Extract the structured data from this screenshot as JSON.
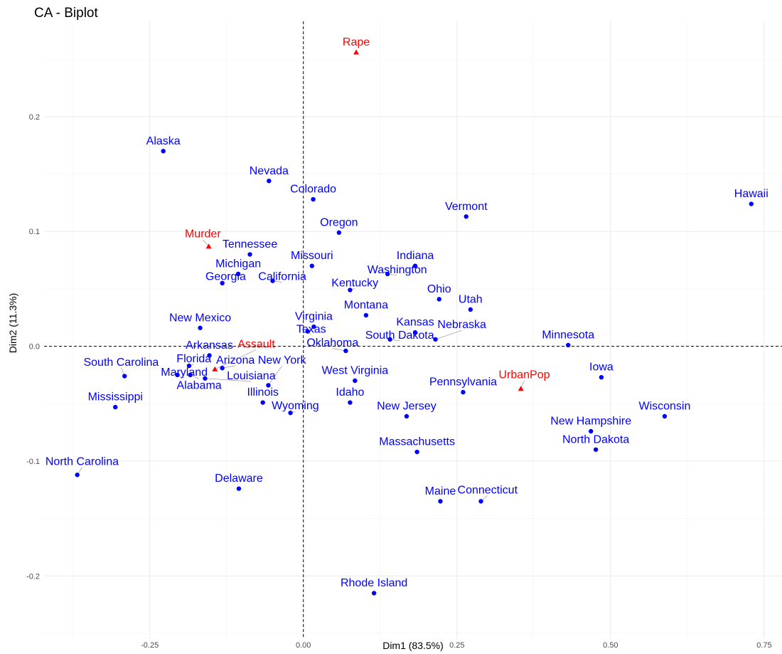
{
  "chart_data": {
    "type": "scatter",
    "title": "CA - Biplot",
    "xlabel": "Dim1 (83.5%)",
    "ylabel": "Dim2 (11.3%)",
    "xlim": [
      -0.422,
      0.779
    ],
    "ylim": [
      -0.255,
      0.283
    ],
    "xticks": [
      -0.25,
      0.0,
      0.25,
      0.5,
      0.75
    ],
    "xtick_labels": [
      "-0.25",
      "0.00",
      "0.25",
      "0.50",
      "0.75"
    ],
    "yticks": [
      -0.2,
      -0.1,
      0.0,
      0.1,
      0.2
    ],
    "ytick_labels": [
      "-0.2",
      "-0.1",
      "0.0",
      "0.1",
      "0.2"
    ],
    "grid": true,
    "colors": {
      "rows": "#0000FF",
      "cols": "#FF0000"
    },
    "series": [
      {
        "name": "rows",
        "marker": "circle",
        "points": [
          {
            "label": "Alaska",
            "x": -0.228,
            "y": 0.17
          },
          {
            "label": "Nevada",
            "x": -0.056,
            "y": 0.144
          },
          {
            "label": "Colorado",
            "x": 0.016,
            "y": 0.128
          },
          {
            "label": "Hawaii",
            "x": 0.729,
            "y": 0.124
          },
          {
            "label": "Vermont",
            "x": 0.265,
            "y": 0.113
          },
          {
            "label": "Oregon",
            "x": 0.058,
            "y": 0.099
          },
          {
            "label": "Tennessee",
            "x": -0.087,
            "y": 0.08
          },
          {
            "label": "Missouri",
            "x": 0.014,
            "y": 0.07
          },
          {
            "label": "Indiana",
            "x": 0.182,
            "y": 0.07
          },
          {
            "label": "Michigan",
            "x": -0.106,
            "y": 0.063
          },
          {
            "label": "Washington",
            "x": 0.137,
            "y": 0.063
          },
          {
            "label": "California",
            "x": -0.05,
            "y": 0.057
          },
          {
            "label": "Georgia",
            "x": -0.132,
            "y": 0.055
          },
          {
            "label": "Kentucky",
            "x": 0.076,
            "y": 0.049
          },
          {
            "label": "Ohio",
            "x": 0.221,
            "y": 0.041
          },
          {
            "label": "Utah",
            "x": 0.272,
            "y": 0.032
          },
          {
            "label": "Montana",
            "x": 0.102,
            "y": 0.027
          },
          {
            "label": "Virginia",
            "x": 0.017,
            "y": 0.017
          },
          {
            "label": "Texas",
            "x": 0.007,
            "y": 0.013
          },
          {
            "label": "New Mexico",
            "x": -0.168,
            "y": 0.016
          },
          {
            "label": "Kansas",
            "x": 0.182,
            "y": 0.012
          },
          {
            "label": "South Dakota",
            "x": 0.141,
            "y": 0.006
          },
          {
            "label": "Nebraska",
            "x": 0.215,
            "y": 0.006
          },
          {
            "label": "Minnesota",
            "x": 0.431,
            "y": 0.001
          },
          {
            "label": "Oklahoma",
            "x": 0.069,
            "y": -0.004
          },
          {
            "label": "Arkansas",
            "x": -0.153,
            "y": -0.008
          },
          {
            "label": "Florida",
            "x": -0.186,
            "y": -0.017
          },
          {
            "label": "Arizona",
            "x": -0.132,
            "y": -0.019
          },
          {
            "label": "Maryland",
            "x": -0.205,
            "y": -0.025
          },
          {
            "label": "Alabama",
            "x": -0.184,
            "y": -0.025
          },
          {
            "label": "Louisiana",
            "x": -0.16,
            "y": -0.028
          },
          {
            "label": "South Carolina",
            "x": -0.291,
            "y": -0.026
          },
          {
            "label": "Iowa",
            "x": 0.485,
            "y": -0.027
          },
          {
            "label": "West Virginia",
            "x": 0.084,
            "y": -0.03
          },
          {
            "label": "New York",
            "x": -0.057,
            "y": -0.034
          },
          {
            "label": "Pennsylvania",
            "x": 0.26,
            "y": -0.04
          },
          {
            "label": "Illinois",
            "x": -0.066,
            "y": -0.049
          },
          {
            "label": "Idaho",
            "x": 0.076,
            "y": -0.049
          },
          {
            "label": "Mississippi",
            "x": -0.306,
            "y": -0.053
          },
          {
            "label": "Wyoming",
            "x": -0.021,
            "y": -0.058
          },
          {
            "label": "New Jersey",
            "x": 0.168,
            "y": -0.061
          },
          {
            "label": "Wisconsin",
            "x": 0.588,
            "y": -0.061
          },
          {
            "label": "New Hampshire",
            "x": 0.468,
            "y": -0.074
          },
          {
            "label": "North Dakota",
            "x": 0.476,
            "y": -0.09
          },
          {
            "label": "Massachusetts",
            "x": 0.185,
            "y": -0.092
          },
          {
            "label": "North Carolina",
            "x": -0.368,
            "y": -0.112
          },
          {
            "label": "Delaware",
            "x": -0.105,
            "y": -0.124
          },
          {
            "label": "Maine",
            "x": 0.223,
            "y": -0.135
          },
          {
            "label": "Connecticut",
            "x": 0.289,
            "y": -0.135
          },
          {
            "label": "Rhode Island",
            "x": 0.115,
            "y": -0.215
          }
        ]
      },
      {
        "name": "cols",
        "marker": "triangle",
        "points": [
          {
            "label": "Rape",
            "x": 0.086,
            "y": 0.256
          },
          {
            "label": "Murder",
            "x": -0.154,
            "y": 0.087
          },
          {
            "label": "Assault",
            "x": -0.144,
            "y": -0.02
          },
          {
            "label": "UrbanPop",
            "x": 0.354,
            "y": -0.037
          }
        ]
      }
    ]
  }
}
